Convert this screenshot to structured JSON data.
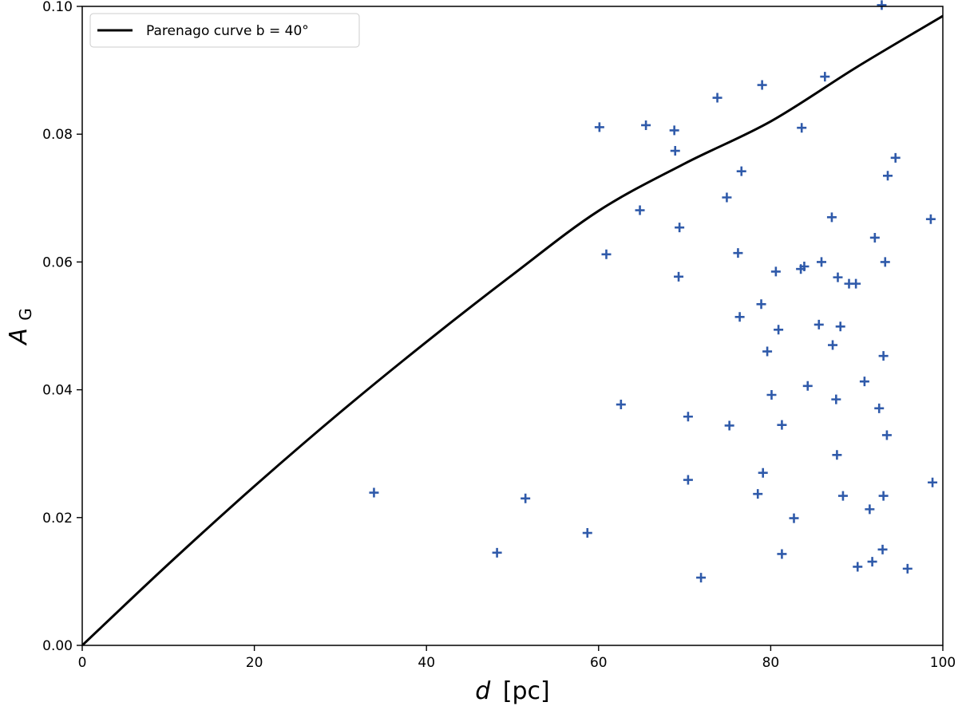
{
  "chart_data": {
    "type": "scatter",
    "xlim": [
      0,
      100
    ],
    "ylim": [
      0,
      0.1
    ],
    "xticks": [
      "0",
      "20",
      "40",
      "60",
      "80",
      "100"
    ],
    "yticks": [
      "0.00",
      "0.02",
      "0.04",
      "0.06",
      "0.08",
      "0.10"
    ],
    "xlabel": {
      "italic": "d",
      "unit": "[pc]"
    },
    "ylabel": {
      "italic": "A",
      "sub": "G"
    },
    "grid": false,
    "legend_position": "top-left",
    "curve": {
      "name": "Parenago curve b = 40°",
      "color": "#000000",
      "x": [
        0,
        10,
        20,
        30,
        40,
        50,
        60,
        70,
        80,
        90,
        100
      ],
      "y": [
        0,
        0.0127,
        0.0249,
        0.0365,
        0.0475,
        0.058,
        0.068,
        0.0754,
        0.082,
        0.0905,
        0.0985
      ]
    },
    "points": {
      "color": "#2f5aaa",
      "marker": "plus",
      "x": [
        33.9,
        48.2,
        51.5,
        58.7,
        60.1,
        60.9,
        62.6,
        64.8,
        65.5,
        68.8,
        68.9,
        69.3,
        69.4,
        70.4,
        70.4,
        71.9,
        73.8,
        74.9,
        75.2,
        76.2,
        76.4,
        76.6,
        78.5,
        78.9,
        79.0,
        79.1,
        79.6,
        80.1,
        80.6,
        80.9,
        81.3,
        81.3,
        82.7,
        83.5,
        83.6,
        83.9,
        84.3,
        85.6,
        85.9,
        86.3,
        87.1,
        87.2,
        87.6,
        87.7,
        87.8,
        88.1,
        88.4,
        89.1,
        89.9,
        90.1,
        90.9,
        91.5,
        91.8,
        92.1,
        92.6,
        92.9,
        93.0,
        93.1,
        93.1,
        93.3,
        93.5,
        93.6,
        94.5,
        95.9,
        98.6,
        98.8
      ],
      "y": [
        0.0239,
        0.0145,
        0.023,
        0.0176,
        0.0811,
        0.0612,
        0.0377,
        0.0681,
        0.0814,
        0.0806,
        0.0774,
        0.0577,
        0.0654,
        0.0358,
        0.0259,
        0.0106,
        0.0857,
        0.0701,
        0.0344,
        0.0614,
        0.0514,
        0.0742,
        0.0237,
        0.0534,
        0.0877,
        0.027,
        0.046,
        0.0392,
        0.0585,
        0.0494,
        0.0143,
        0.0345,
        0.0199,
        0.0589,
        0.081,
        0.0593,
        0.0406,
        0.0502,
        0.06,
        0.089,
        0.067,
        0.047,
        0.0385,
        0.0298,
        0.0576,
        0.0499,
        0.0234,
        0.0566,
        0.0566,
        0.0123,
        0.0413,
        0.0213,
        0.0131,
        0.0638,
        0.0371,
        0.1002,
        0.015,
        0.0234,
        0.0453,
        0.06,
        0.0329,
        0.0735,
        0.0763,
        0.012,
        0.0667,
        0.0255
      ]
    }
  }
}
